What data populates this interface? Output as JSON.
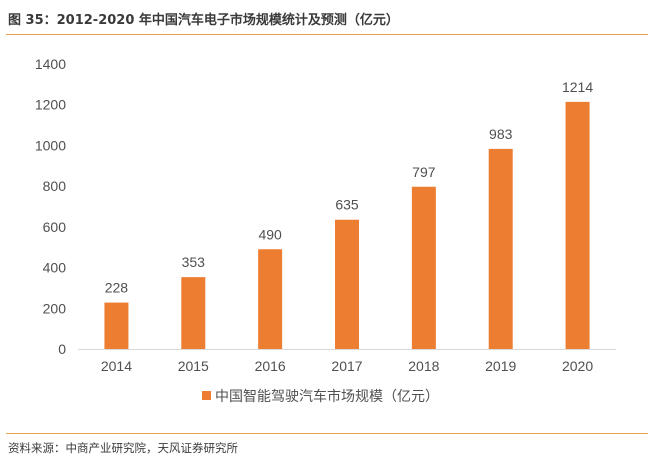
{
  "figure": {
    "title": "图 35：2012-2020 年中国汽车电子市场规模统计及预测（亿元）",
    "source": "资料来源：中商产业研究院，天风证券研究所"
  },
  "colors": {
    "bar": "#ED7D31",
    "rule": "#E6A04A",
    "axis": "#D9D9D9",
    "text": "#505050"
  },
  "chart_data": {
    "type": "bar",
    "categories": [
      "2014",
      "2015",
      "2016",
      "2017",
      "2018",
      "2019",
      "2020"
    ],
    "series": [
      {
        "name": "中国智能驾驶汽车市场规模（亿元）",
        "values": [
          228,
          353,
          490,
          635,
          797,
          983,
          1214
        ]
      }
    ],
    "data_labels": [
      "228",
      "353",
      "490",
      "635",
      "797",
      "983",
      "1214"
    ],
    "y_ticks": [
      0,
      200,
      400,
      600,
      800,
      1000,
      1200,
      1400
    ],
    "ylim": [
      0,
      1400
    ],
    "grid": false,
    "legend": "bottom-center",
    "title": "",
    "xlabel": "",
    "ylabel": ""
  }
}
